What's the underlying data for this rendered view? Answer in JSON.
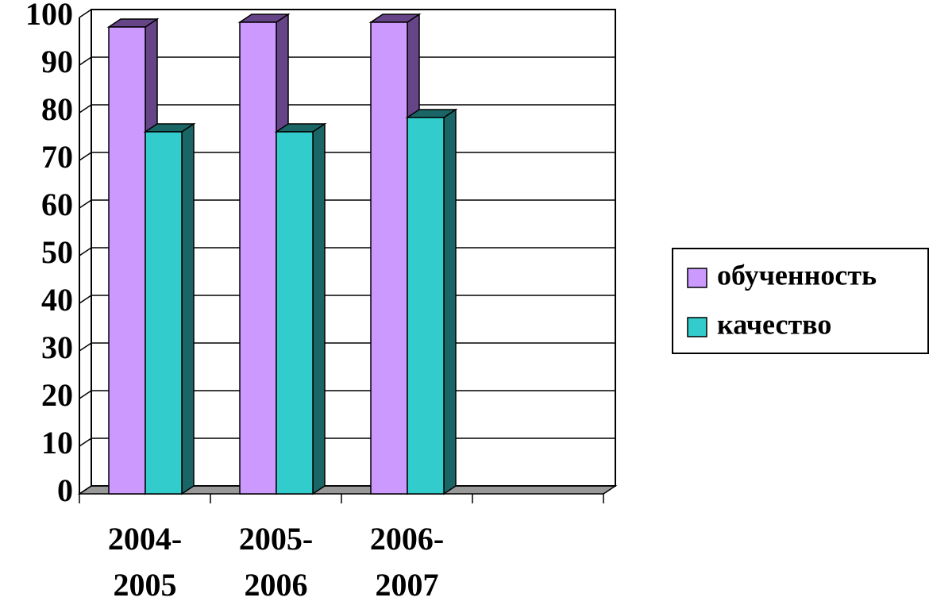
{
  "chart_data": {
    "type": "bar3d",
    "categories": [
      "2004-2005",
      "2005-2006",
      "2006-2007",
      null
    ],
    "series": [
      {
        "name": "обученность",
        "color": "#cc99ff",
        "side_color": "#664488",
        "values": [
          98,
          99,
          99,
          null
        ]
      },
      {
        "name": "качество",
        "color": "#33cccc",
        "side_color": "#1a6666",
        "values": [
          76,
          76,
          79,
          null
        ]
      }
    ],
    "ylim": [
      0,
      100
    ],
    "yticks": [
      0,
      10,
      20,
      30,
      40,
      50,
      60,
      70,
      80,
      90,
      100
    ],
    "grid": true,
    "legend": "right"
  }
}
